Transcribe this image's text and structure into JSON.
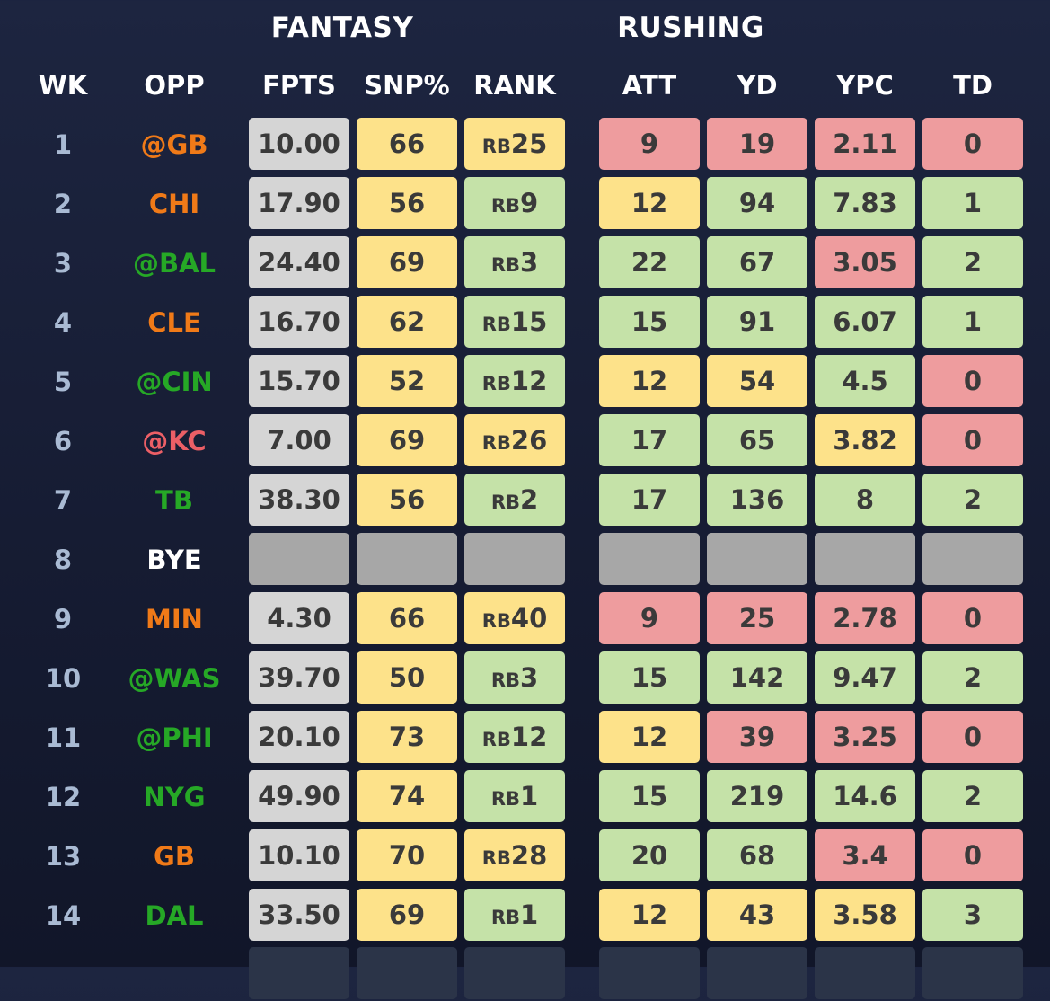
{
  "headers": {
    "fantasy": "FANTASY",
    "rushing": "RUSHING",
    "columns": {
      "wk": "WK",
      "opp": "OPP",
      "fpts": "FPTS",
      "snp": "SNP%",
      "rank": "RANK",
      "att": "ATT",
      "yd": "YD",
      "ypc": "YPC",
      "td": "TD"
    }
  },
  "colors": {
    "gray_cell": "#d5d5d5",
    "yellow": "#fde28a",
    "green": "#c5e2a8",
    "red": "#ee9c9e",
    "bye_cell": "#a7a7a7",
    "faded_cell": "#2b3448",
    "opp_orange": "#f07a18",
    "opp_green": "#26a826",
    "opp_red": "#ec5f66",
    "opp_white": "#ffffff"
  },
  "rows": [
    {
      "wk": "1",
      "opp": "@GB",
      "opp_color": "orange",
      "fpts": "10.00",
      "snp": "66",
      "rank_prefix": "RB",
      "rank_num": "25",
      "rank_color": "yellow",
      "att": "9",
      "att_color": "red",
      "yd": "19",
      "yd_color": "red",
      "ypc": "2.11",
      "ypc_color": "red",
      "td": "0",
      "td_color": "red"
    },
    {
      "wk": "2",
      "opp": "CHI",
      "opp_color": "orange",
      "fpts": "17.90",
      "snp": "56",
      "rank_prefix": "RB",
      "rank_num": "9",
      "rank_color": "green",
      "att": "12",
      "att_color": "yellow",
      "yd": "94",
      "yd_color": "green",
      "ypc": "7.83",
      "ypc_color": "green",
      "td": "1",
      "td_color": "green"
    },
    {
      "wk": "3",
      "opp": "@BAL",
      "opp_color": "green",
      "fpts": "24.40",
      "snp": "69",
      "rank_prefix": "RB",
      "rank_num": "3",
      "rank_color": "green",
      "att": "22",
      "att_color": "green",
      "yd": "67",
      "yd_color": "green",
      "ypc": "3.05",
      "ypc_color": "red",
      "td": "2",
      "td_color": "green"
    },
    {
      "wk": "4",
      "opp": "CLE",
      "opp_color": "orange",
      "fpts": "16.70",
      "snp": "62",
      "rank_prefix": "RB",
      "rank_num": "15",
      "rank_color": "green",
      "att": "15",
      "att_color": "green",
      "yd": "91",
      "yd_color": "green",
      "ypc": "6.07",
      "ypc_color": "green",
      "td": "1",
      "td_color": "green"
    },
    {
      "wk": "5",
      "opp": "@CIN",
      "opp_color": "green",
      "fpts": "15.70",
      "snp": "52",
      "rank_prefix": "RB",
      "rank_num": "12",
      "rank_color": "green",
      "att": "12",
      "att_color": "yellow",
      "yd": "54",
      "yd_color": "yellow",
      "ypc": "4.5",
      "ypc_color": "green",
      "td": "0",
      "td_color": "red"
    },
    {
      "wk": "6",
      "opp": "@KC",
      "opp_color": "red",
      "fpts": "7.00",
      "snp": "69",
      "rank_prefix": "RB",
      "rank_num": "26",
      "rank_color": "yellow",
      "att": "17",
      "att_color": "green",
      "yd": "65",
      "yd_color": "green",
      "ypc": "3.82",
      "ypc_color": "yellow",
      "td": "0",
      "td_color": "red"
    },
    {
      "wk": "7",
      "opp": "TB",
      "opp_color": "green",
      "fpts": "38.30",
      "snp": "56",
      "rank_prefix": "RB",
      "rank_num": "2",
      "rank_color": "green",
      "att": "17",
      "att_color": "green",
      "yd": "136",
      "yd_color": "green",
      "ypc": "8",
      "ypc_color": "green",
      "td": "2",
      "td_color": "green"
    },
    {
      "wk": "8",
      "opp": "BYE",
      "opp_color": "white",
      "bye": true,
      "fpts": "",
      "snp": "",
      "rank_prefix": "",
      "rank_num": "",
      "rank_color": "bye",
      "att": "",
      "att_color": "bye",
      "yd": "",
      "yd_color": "bye",
      "ypc": "",
      "ypc_color": "bye",
      "td": "",
      "td_color": "bye"
    },
    {
      "wk": "9",
      "opp": "MIN",
      "opp_color": "orange",
      "fpts": "4.30",
      "snp": "66",
      "rank_prefix": "RB",
      "rank_num": "40",
      "rank_color": "yellow",
      "att": "9",
      "att_color": "red",
      "yd": "25",
      "yd_color": "red",
      "ypc": "2.78",
      "ypc_color": "red",
      "td": "0",
      "td_color": "red"
    },
    {
      "wk": "10",
      "opp": "@WAS",
      "opp_color": "green",
      "fpts": "39.70",
      "snp": "50",
      "rank_prefix": "RB",
      "rank_num": "3",
      "rank_color": "green",
      "att": "15",
      "att_color": "green",
      "yd": "142",
      "yd_color": "green",
      "ypc": "9.47",
      "ypc_color": "green",
      "td": "2",
      "td_color": "green"
    },
    {
      "wk": "11",
      "opp": "@PHI",
      "opp_color": "green",
      "fpts": "20.10",
      "snp": "73",
      "rank_prefix": "RB",
      "rank_num": "12",
      "rank_color": "green",
      "att": "12",
      "att_color": "yellow",
      "yd": "39",
      "yd_color": "red",
      "ypc": "3.25",
      "ypc_color": "red",
      "td": "0",
      "td_color": "red"
    },
    {
      "wk": "12",
      "opp": "NYG",
      "opp_color": "green",
      "fpts": "49.90",
      "snp": "74",
      "rank_prefix": "RB",
      "rank_num": "1",
      "rank_color": "green",
      "att": "15",
      "att_color": "green",
      "yd": "219",
      "yd_color": "green",
      "ypc": "14.6",
      "ypc_color": "green",
      "td": "2",
      "td_color": "green"
    },
    {
      "wk": "13",
      "opp": "GB",
      "opp_color": "orange",
      "fpts": "10.10",
      "snp": "70",
      "rank_prefix": "RB",
      "rank_num": "28",
      "rank_color": "yellow",
      "att": "20",
      "att_color": "green",
      "yd": "68",
      "yd_color": "green",
      "ypc": "3.4",
      "ypc_color": "red",
      "td": "0",
      "td_color": "red"
    },
    {
      "wk": "14",
      "opp": "DAL",
      "opp_color": "green",
      "fpts": "33.50",
      "snp": "69",
      "rank_prefix": "RB",
      "rank_num": "1",
      "rank_color": "green",
      "att": "12",
      "att_color": "yellow",
      "yd": "43",
      "yd_color": "yellow",
      "ypc": "3.58",
      "ypc_color": "yellow",
      "td": "3",
      "td_color": "green"
    }
  ]
}
